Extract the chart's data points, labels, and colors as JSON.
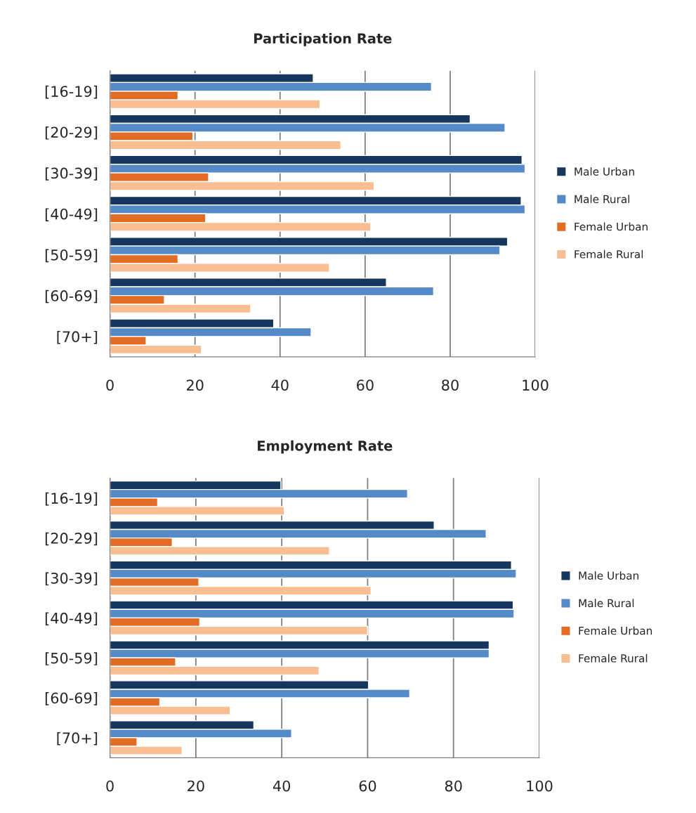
{
  "chart_data": [
    {
      "type": "bar",
      "title": "Participation Rate",
      "orientation": "horizontal",
      "categories": [
        "[16-19]",
        "[20-29]",
        "[30-39]",
        "[40-49]",
        "[50-59]",
        "[60-69]",
        "[70+]"
      ],
      "series": [
        {
          "name": "Male Urban",
          "color": "#17365d",
          "values": [
            47.8,
            84.7,
            96.9,
            96.7,
            93.5,
            65.0,
            38.5
          ]
        },
        {
          "name": "Male Rural",
          "color": "#558ac8",
          "values": [
            75.6,
            92.9,
            97.6,
            97.6,
            91.7,
            76.1,
            47.3
          ]
        },
        {
          "name": "Female Urban",
          "color": "#e36c24",
          "values": [
            16.0,
            19.5,
            23.2,
            22.5,
            16.0,
            12.8,
            8.5
          ]
        },
        {
          "name": "Female Rural",
          "color": "#f9be92",
          "values": [
            49.4,
            54.3,
            62.1,
            61.3,
            51.6,
            33.1,
            21.5
          ]
        }
      ],
      "xlim": [
        0,
        100
      ],
      "xticks": [
        0,
        20,
        40,
        60,
        80,
        100
      ],
      "grid": "x",
      "legend": "right"
    },
    {
      "type": "bar",
      "title": "Employment Rate",
      "orientation": "horizontal",
      "categories": [
        "[16-19]",
        "[20-29]",
        "[30-39]",
        "[40-49]",
        "[50-59]",
        "[60-69]",
        "[70+]"
      ],
      "series": [
        {
          "name": "Male Urban",
          "color": "#17365d",
          "values": [
            39.8,
            75.5,
            93.5,
            93.9,
            88.3,
            60.2,
            33.5
          ]
        },
        {
          "name": "Male Rural",
          "color": "#558ac8",
          "values": [
            69.3,
            87.6,
            94.6,
            94.1,
            88.3,
            69.8,
            42.3
          ]
        },
        {
          "name": "Female Urban",
          "color": "#e36c24",
          "values": [
            11.1,
            14.5,
            20.7,
            20.9,
            15.3,
            11.6,
            6.3
          ]
        },
        {
          "name": "Female Rural",
          "color": "#f9be92",
          "values": [
            40.6,
            51.1,
            60.8,
            60.0,
            48.7,
            28.0,
            16.8
          ]
        }
      ],
      "xlim": [
        0,
        100
      ],
      "xticks": [
        0,
        20,
        40,
        60,
        80,
        100
      ],
      "grid": "x",
      "legend": "right"
    }
  ]
}
